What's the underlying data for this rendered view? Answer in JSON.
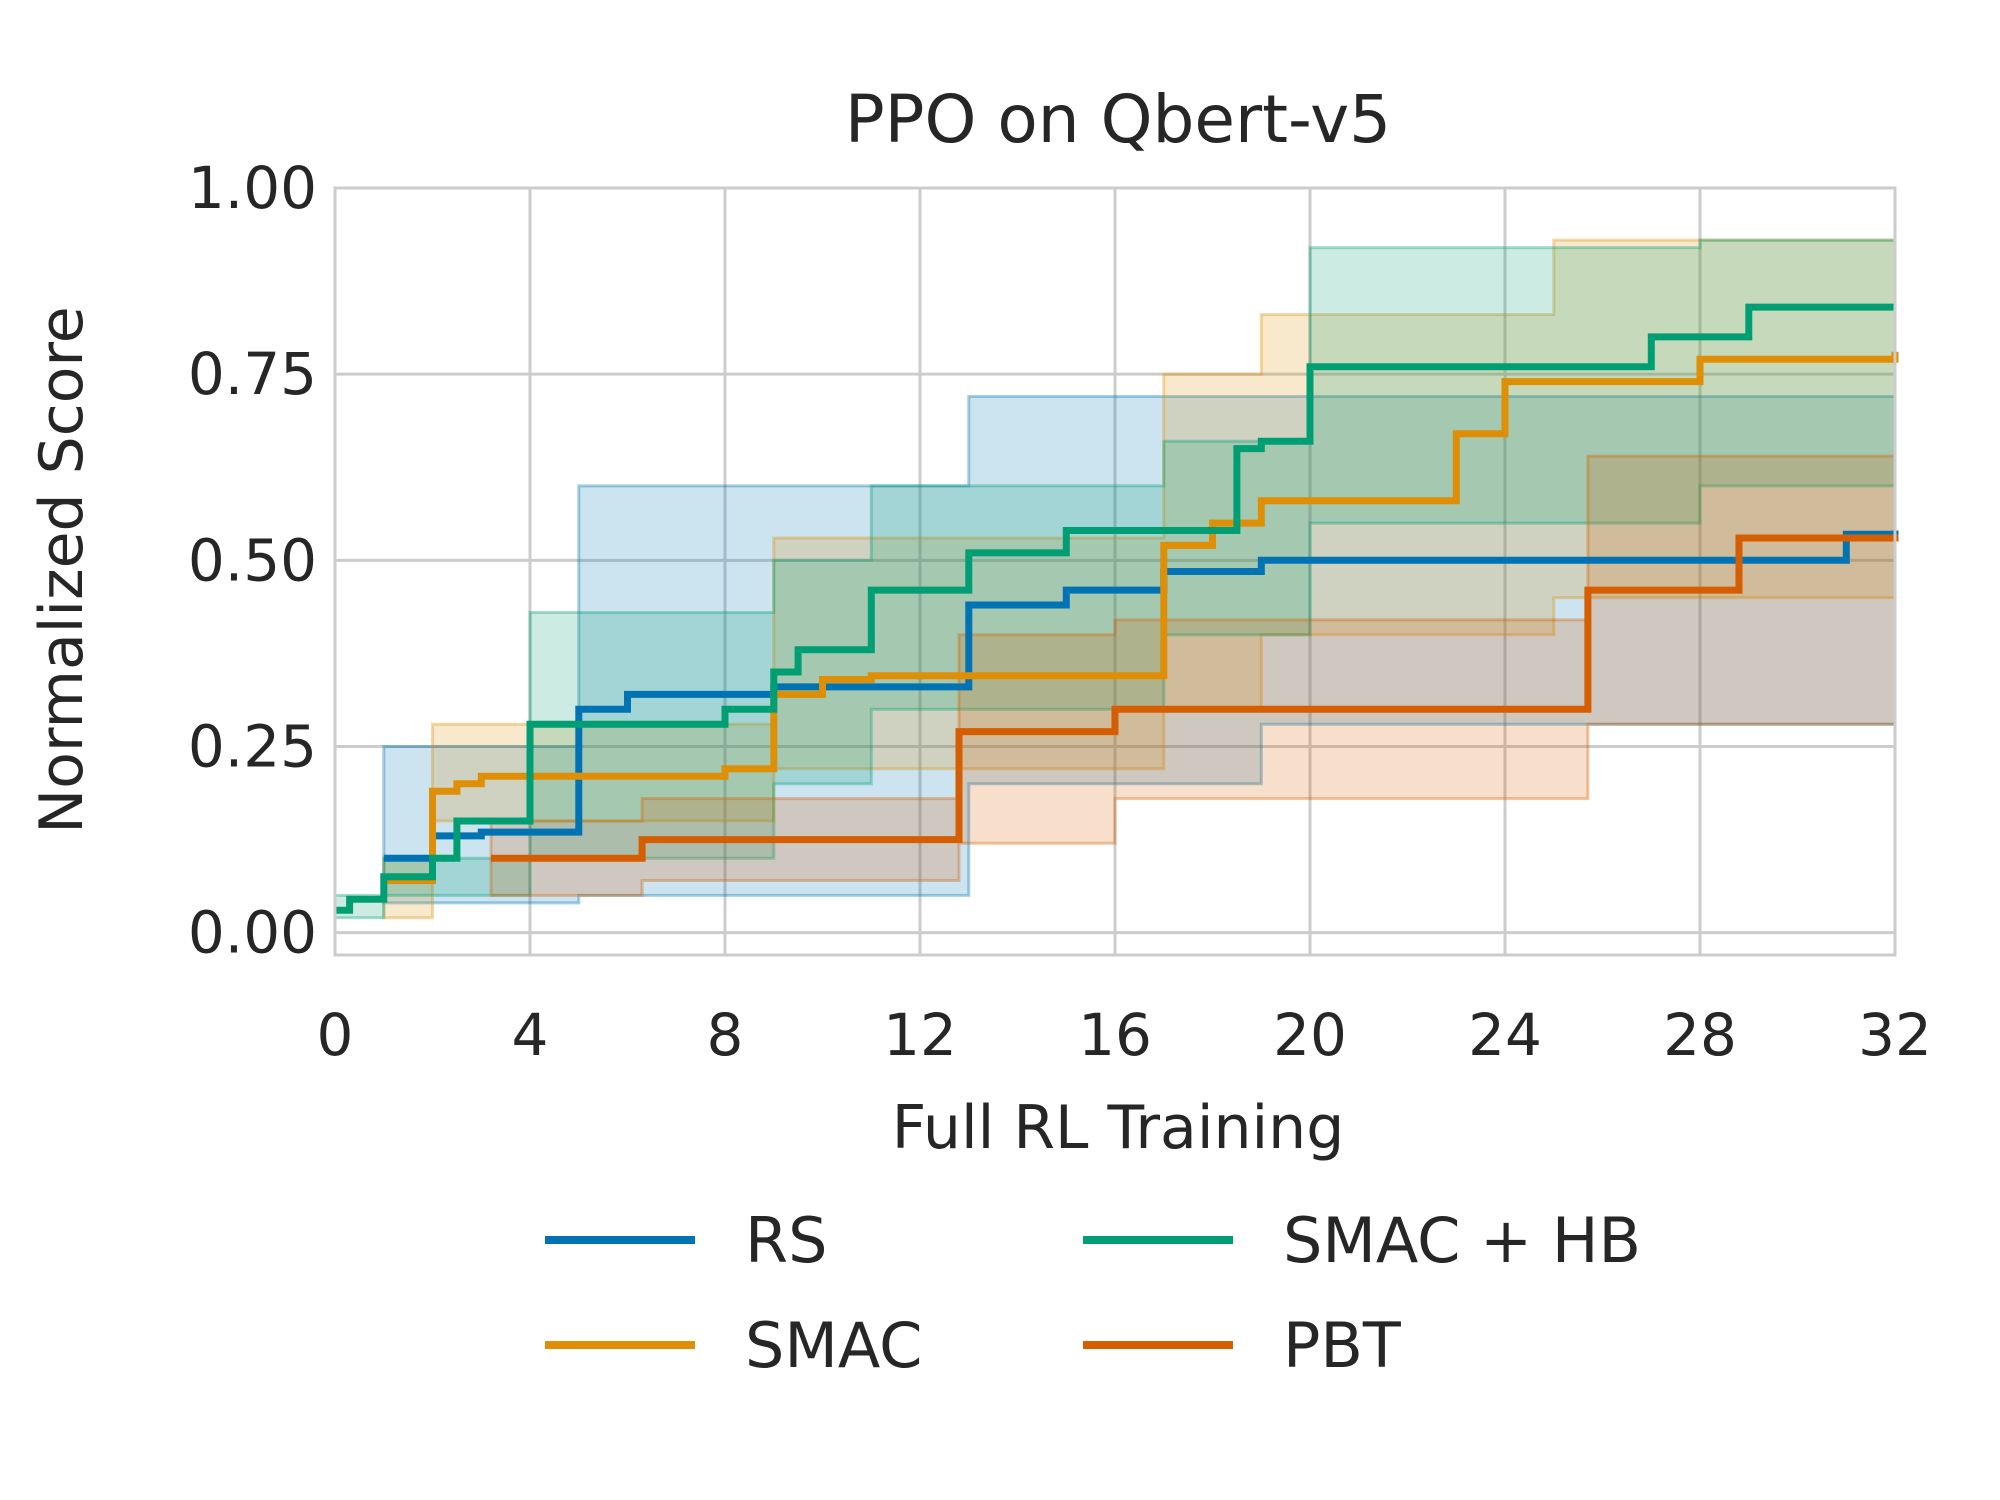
{
  "chart_data": {
    "type": "line",
    "title": "PPO on Qbert-v5",
    "xlabel": "Full RL Training",
    "ylabel": "Normalized Score",
    "xlim": [
      0,
      32
    ],
    "ylim": [
      -0.03,
      1.0
    ],
    "xticks": [
      0,
      4,
      8,
      12,
      16,
      20,
      24,
      28,
      32
    ],
    "xtick_labels": [
      "0",
      "4",
      "8",
      "12",
      "16",
      "20",
      "24",
      "28",
      "32"
    ],
    "yticks": [
      0.0,
      0.25,
      0.5,
      0.75,
      1.0
    ],
    "ytick_labels": [
      "0.00",
      "0.25",
      "0.50",
      "0.75",
      "1.00"
    ],
    "grid": true,
    "legend_position": "bottom, two columns",
    "step_plot": true,
    "series": [
      {
        "name": "RS",
        "color": "#0173b2",
        "x": [
          1,
          2,
          3,
          5,
          6,
          9,
          11,
          13,
          15,
          17,
          19,
          28,
          31,
          32
        ],
        "y": [
          0.1,
          0.13,
          0.135,
          0.3,
          0.32,
          0.33,
          0.33,
          0.44,
          0.46,
          0.485,
          0.5,
          0.5,
          0.535,
          0.54
        ],
        "band_x": [
          1,
          5,
          13,
          19,
          32
        ],
        "band_lower": [
          0.04,
          0.05,
          0.2,
          0.28,
          0.28
        ],
        "band_upper": [
          0.25,
          0.6,
          0.72,
          0.72,
          0.5
        ]
      },
      {
        "name": "SMAC",
        "color": "#de8f05",
        "x": [
          1,
          2,
          2.5,
          3,
          8,
          9,
          10,
          11,
          17,
          18,
          19,
          23,
          24,
          28,
          32
        ],
        "y": [
          0.07,
          0.19,
          0.2,
          0.21,
          0.22,
          0.32,
          0.34,
          0.345,
          0.52,
          0.55,
          0.58,
          0.67,
          0.74,
          0.77,
          0.78
        ],
        "band_x": [
          1,
          2,
          9,
          17,
          19,
          25,
          32
        ],
        "band_lower": [
          0.02,
          0.15,
          0.22,
          0.3,
          0.4,
          0.45,
          0.55
        ],
        "band_upper": [
          0.1,
          0.28,
          0.53,
          0.75,
          0.83,
          0.93,
          0.93
        ]
      },
      {
        "name": "SMAC + HB",
        "color": "#029e73",
        "x": [
          0,
          0.3,
          1,
          2,
          2.5,
          4,
          8,
          9,
          9.5,
          11,
          13,
          15,
          18.5,
          19,
          20,
          27,
          29,
          32
        ],
        "y": [
          0.03,
          0.045,
          0.075,
          0.1,
          0.15,
          0.28,
          0.3,
          0.35,
          0.38,
          0.46,
          0.51,
          0.54,
          0.65,
          0.66,
          0.76,
          0.8,
          0.84,
          0.84
        ],
        "band_x": [
          0,
          1,
          4,
          9,
          11,
          17,
          20,
          28,
          32
        ],
        "band_lower": [
          0.02,
          0.05,
          0.1,
          0.2,
          0.3,
          0.4,
          0.55,
          0.6,
          0.73
        ],
        "band_upper": [
          0.05,
          0.1,
          0.43,
          0.5,
          0.6,
          0.66,
          0.92,
          0.93,
          0.93
        ]
      },
      {
        "name": "PBT",
        "color": "#d55e00",
        "x": [
          3.2,
          6.3,
          12.8,
          16,
          25.7,
          28.8,
          32
        ],
        "y": [
          0.1,
          0.125,
          0.27,
          0.3,
          0.46,
          0.53,
          0.535
        ],
        "band_x": [
          3.2,
          6.3,
          12.8,
          16,
          25.7,
          32
        ],
        "band_lower": [
          0.05,
          0.07,
          0.12,
          0.18,
          0.28,
          0.28
        ],
        "band_upper": [
          0.15,
          0.18,
          0.4,
          0.42,
          0.64,
          0.74
        ]
      }
    ]
  }
}
